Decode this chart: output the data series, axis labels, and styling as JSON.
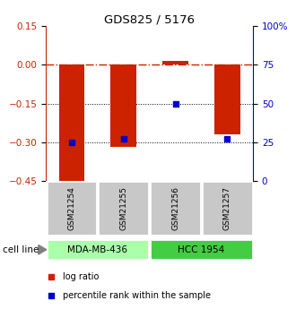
{
  "title": "GDS825 / 5176",
  "samples": [
    "GSM21254",
    "GSM21255",
    "GSM21256",
    "GSM21257"
  ],
  "log_ratios": [
    -0.46,
    -0.32,
    0.015,
    -0.27
  ],
  "percentile_ranks": [
    25,
    27,
    50,
    27
  ],
  "ylim_left": [
    -0.45,
    0.15
  ],
  "ylim_right": [
    0,
    100
  ],
  "yticks_left": [
    0.15,
    0,
    -0.15,
    -0.3,
    -0.45
  ],
  "yticks_right": [
    100,
    75,
    50,
    25,
    0
  ],
  "cell_lines": [
    {
      "label": "MDA-MB-436",
      "samples": [
        0,
        1
      ],
      "color": "#aaffaa"
    },
    {
      "label": "HCC 1954",
      "samples": [
        2,
        3
      ],
      "color": "#44cc44"
    }
  ],
  "bar_color": "#cc2200",
  "square_color": "#0000cc",
  "hline_0_color": "#cc2200",
  "hline_dotted_color": "#000000",
  "left_axis_color": "#cc2200",
  "right_axis_color": "#0000cc",
  "bg_color": "#ffffff",
  "plot_bg_color": "#ffffff",
  "sample_box_color": "#c8c8c8",
  "bar_width": 0.5,
  "legend_items": [
    {
      "label": "log ratio",
      "color": "#cc2200"
    },
    {
      "label": "percentile rank within the sample",
      "color": "#0000cc"
    }
  ]
}
